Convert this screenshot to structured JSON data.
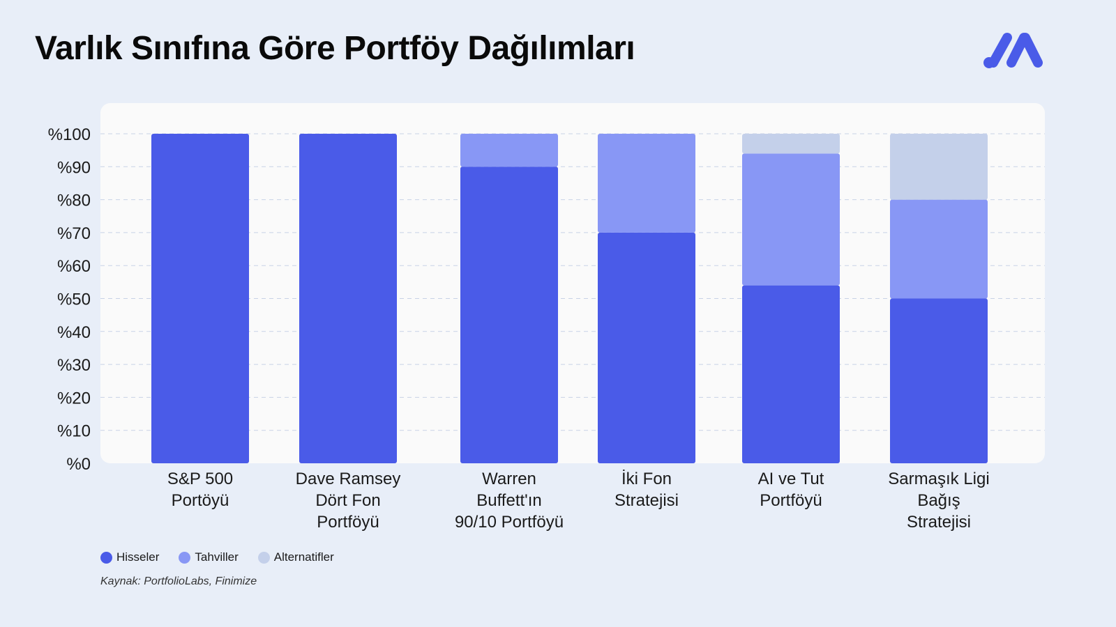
{
  "page": {
    "title": "Varlık Sınıfına Göre Portföy Dağılımları",
    "source": "Kaynak: PortfolioLabs, Finimize",
    "logo": "brand-logo-icon"
  },
  "colors": {
    "background": "#e8eef8",
    "panel": "#fafafa",
    "hisseler": "#4a5be8",
    "tahviller": "#8897f5",
    "alternatifler": "#c4d0ea"
  },
  "legend": [
    {
      "name": "Hisseler",
      "color": "#4a5be8"
    },
    {
      "name": "Tahviller",
      "color": "#8897f5"
    },
    {
      "name": "Alternatifler",
      "color": "#c4d0ea"
    }
  ],
  "chart_data": {
    "type": "bar",
    "stacked": true,
    "title": "Varlık Sınıfına Göre Portföy Dağılımları",
    "categories": [
      [
        "S&P 500",
        "Portöyü"
      ],
      [
        "Dave Ramsey",
        "Dört Fon",
        "Portföyü"
      ],
      [
        "Warren",
        "Buffett'ın",
        "90/10 Portföyü"
      ],
      [
        "İki Fon",
        "Stratejisi"
      ],
      [
        "AI ve Tut",
        "Portföyü"
      ],
      [
        "Sarmaşık Ligi",
        "Bağış",
        "Stratejisi"
      ]
    ],
    "series": [
      {
        "name": "Hisseler",
        "color": "#4a5be8",
        "values": [
          100,
          100,
          90,
          70,
          54,
          50
        ]
      },
      {
        "name": "Tahviller",
        "color": "#8897f5",
        "values": [
          0,
          0,
          10,
          30,
          40,
          30
        ]
      },
      {
        "name": "Alternatifler",
        "color": "#c4d0ea",
        "values": [
          0,
          0,
          0,
          0,
          6,
          20
        ]
      }
    ],
    "ylim": [
      0,
      100
    ],
    "yticks": [
      "%0",
      "%10",
      "%20",
      "%30",
      "%40",
      "%50",
      "%60",
      "%70",
      "%80",
      "%90",
      "%100"
    ],
    "grid": true,
    "legend_position": "bottom-left"
  }
}
